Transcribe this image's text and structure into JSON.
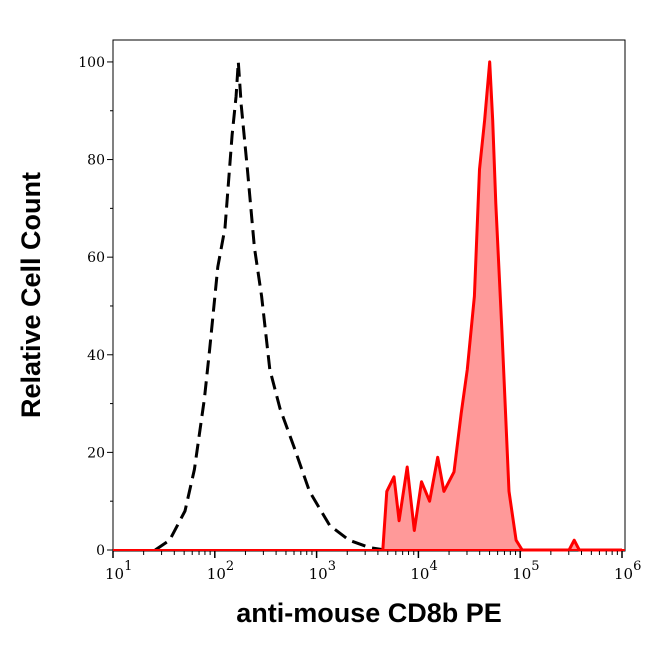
{
  "chart_data": {
    "type": "area",
    "title": "",
    "xlabel": "anti-mouse CD8b PE",
    "ylabel": "Relative Cell Count",
    "xscale": "log",
    "xlim": [
      10,
      1070000
    ],
    "ylim": [
      0,
      104.7
    ],
    "xticks": [
      {
        "base": "10",
        "exp": "1"
      },
      {
        "base": "10",
        "exp": "2"
      },
      {
        "base": "10",
        "exp": "3"
      },
      {
        "base": "10",
        "exp": "4"
      },
      {
        "base": "10",
        "exp": "5"
      },
      {
        "base": "10",
        "exp": "6"
      }
    ],
    "yticks": [
      "0",
      "20",
      "40",
      "60",
      "80",
      "100"
    ],
    "grid": false,
    "series": [
      {
        "style": "dashed line, no fill",
        "color": "#000000",
        "x": [
          26,
          36,
          51,
          63,
          79,
          89,
          107,
          126,
          148,
          162,
          170,
          182,
          209,
          245,
          288,
          347,
          437,
          603,
          851,
          1349,
          2089,
          3311,
          4677
        ],
        "y": [
          0,
          2,
          8,
          16.5,
          31,
          41,
          58,
          66,
          85,
          93,
          100,
          91,
          78,
          62,
          52,
          37,
          29,
          21,
          12,
          5,
          2,
          0.5,
          0
        ]
      },
      {
        "style": "solid line, filled",
        "color": "#ff0000",
        "fill": "#ff9999",
        "x": [
          4467,
          4898,
          5754,
          6457,
          7762,
          9120,
          10715,
          12882,
          15488,
          17783,
          22387,
          26303,
          30200,
          35481,
          39811,
          44668,
          50119,
          53703,
          57544,
          66069,
          77625,
          91201,
          104713,
          301995,
          338844,
          380189,
          1000000
        ],
        "y": [
          0,
          12,
          15,
          6,
          17,
          4,
          14,
          10,
          19,
          12,
          16,
          28,
          37,
          52,
          78,
          88,
          100,
          88,
          71,
          45,
          12,
          2,
          0,
          0,
          2,
          0,
          0
        ]
      }
    ]
  }
}
